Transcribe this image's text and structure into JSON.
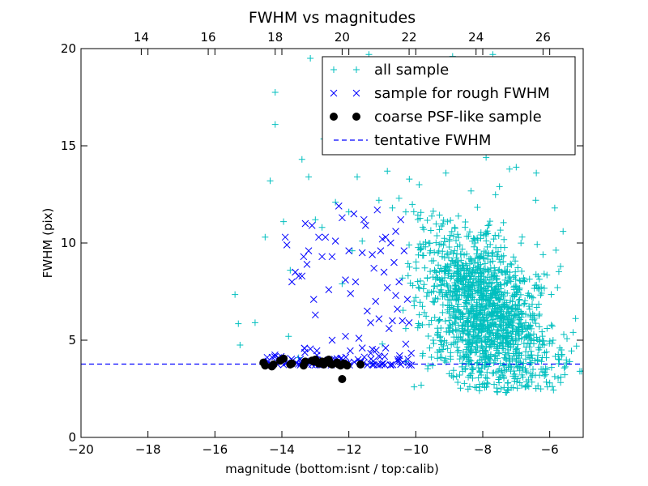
{
  "chart_data": {
    "type": "scatter",
    "title": "FWHM vs magnitudes",
    "xlabel": "magnitude (bottom:isnt / top:calib)",
    "ylabel": "FWHM (pix)",
    "xlim": [
      -20,
      -5
    ],
    "ylim": [
      0,
      20
    ],
    "xticks": [
      "−20",
      "−18",
      "−16",
      "−14",
      "−12",
      "−10",
      "−8",
      "−6"
    ],
    "yticks": [
      "0",
      "5",
      "10",
      "15",
      "20"
    ],
    "top_axis": {
      "offset_to_calib": 32.2,
      "ticks": [
        "14",
        "16",
        "18",
        "20",
        "22",
        "24",
        "26"
      ]
    },
    "legend_position": "upper-right",
    "grid": false,
    "series": [
      {
        "name": "all sample",
        "marker": "plus",
        "color": "#00bfbf",
        "cloud": {
          "cx": -7.9,
          "cy": 6.4,
          "sx": 0.95,
          "sy": 1.9,
          "n": 1500,
          "seed": 7
        },
        "points": [
          [
            -15.4,
            7.35
          ],
          [
            -15.3,
            5.85
          ],
          [
            -15.25,
            4.75
          ],
          [
            -14.8,
            5.9
          ],
          [
            -14.5,
            10.3
          ],
          [
            -14.35,
            13.2
          ],
          [
            -14.2,
            17.75
          ],
          [
            -14.2,
            16.1
          ],
          [
            -13.95,
            11.1
          ],
          [
            -13.8,
            5.2
          ],
          [
            -13.75,
            8.6
          ],
          [
            -13.4,
            14.3
          ],
          [
            -13.2,
            13.4
          ],
          [
            -13.15,
            19.5
          ],
          [
            -13.0,
            11.2
          ],
          [
            -12.8,
            10.8
          ],
          [
            -12.75,
            15.35
          ],
          [
            -12.65,
            14.9
          ],
          [
            -12.4,
            12.1
          ],
          [
            -12.2,
            7.9
          ],
          [
            -12.0,
            11.6
          ],
          [
            -11.9,
            9.6
          ],
          [
            -11.75,
            13.4
          ],
          [
            -11.6,
            10.1
          ],
          [
            -11.4,
            19.7
          ],
          [
            -11.3,
            14.9
          ],
          [
            -11.1,
            12.2
          ],
          [
            -11.0,
            4.8
          ],
          [
            -10.85,
            13.7
          ],
          [
            -10.7,
            11.8
          ],
          [
            -10.6,
            15.3
          ],
          [
            -10.5,
            12.3
          ],
          [
            -10.4,
            8.2
          ],
          [
            -10.3,
            5.6
          ],
          [
            -10.2,
            9.9
          ],
          [
            -10.05,
            2.6
          ],
          [
            -10.0,
            7.2
          ],
          [
            -9.9,
            13.0
          ],
          [
            -9.8,
            4.2
          ],
          [
            -9.6,
            5.8
          ],
          [
            -9.3,
            4.5
          ],
          [
            -9.1,
            13.6
          ],
          [
            -8.9,
            19.6
          ],
          [
            -8.6,
            15.2
          ],
          [
            -8.3,
            17.6
          ],
          [
            -8.1,
            2.4
          ],
          [
            -7.9,
            14.4
          ],
          [
            -7.7,
            19.7
          ],
          [
            -7.5,
            12.9
          ],
          [
            -7.2,
            13.8
          ],
          [
            -7.0,
            13.9
          ],
          [
            -6.8,
            3.1
          ],
          [
            -6.6,
            6.6
          ],
          [
            -6.4,
            13.6
          ],
          [
            -6.2,
            9.4
          ],
          [
            -6.0,
            2.8
          ],
          [
            -5.85,
            11.8
          ],
          [
            -5.7,
            4.6
          ],
          [
            -5.6,
            10.6
          ],
          [
            -5.4,
            3.9
          ],
          [
            -5.3,
            5.4
          ],
          [
            -5.2,
            4.7
          ],
          [
            -5.1,
            3.4
          ],
          [
            -5.05,
            3.4
          ],
          [
            -6.1,
            4.1
          ],
          [
            -5.9,
            5.0
          ],
          [
            -6.5,
            3.5
          ],
          [
            -7.4,
            3.2
          ],
          [
            -8.6,
            3.4
          ],
          [
            -9.5,
            3.7
          ],
          [
            -10.3,
            3.9
          ],
          [
            -11.3,
            3.8
          ],
          [
            -12.9,
            3.9
          ],
          [
            -13.5,
            4.1
          ]
        ]
      },
      {
        "name": "sample for rough FWHM",
        "marker": "x",
        "color": "#0000ff",
        "points": [
          [
            -13.9,
            10.3
          ],
          [
            -13.85,
            9.9
          ],
          [
            -13.7,
            8.0
          ],
          [
            -13.6,
            8.5
          ],
          [
            -13.5,
            8.3
          ],
          [
            -13.4,
            8.3
          ],
          [
            -13.35,
            9.3
          ],
          [
            -13.3,
            11.0
          ],
          [
            -13.25,
            8.9
          ],
          [
            -13.2,
            9.6
          ],
          [
            -13.1,
            10.9
          ],
          [
            -13.05,
            7.1
          ],
          [
            -13.0,
            6.3
          ],
          [
            -12.9,
            10.3
          ],
          [
            -12.8,
            9.3
          ],
          [
            -12.7,
            10.3
          ],
          [
            -12.6,
            7.6
          ],
          [
            -12.5,
            9.3
          ],
          [
            -12.4,
            10.1
          ],
          [
            -12.3,
            11.9
          ],
          [
            -12.2,
            11.3
          ],
          [
            -12.1,
            8.1
          ],
          [
            -12.0,
            9.6
          ],
          [
            -11.95,
            7.4
          ],
          [
            -11.85,
            11.5
          ],
          [
            -11.8,
            8.0
          ],
          [
            -11.7,
            5.1
          ],
          [
            -11.6,
            9.5
          ],
          [
            -11.55,
            11.2
          ],
          [
            -11.5,
            10.9
          ],
          [
            -11.45,
            6.5
          ],
          [
            -11.35,
            5.9
          ],
          [
            -11.3,
            9.4
          ],
          [
            -11.2,
            7.0
          ],
          [
            -11.15,
            11.7
          ],
          [
            -11.1,
            6.1
          ],
          [
            -11.05,
            9.6
          ],
          [
            -11.0,
            10.2
          ],
          [
            -10.95,
            8.5
          ],
          [
            -10.9,
            10.3
          ],
          [
            -10.85,
            7.7
          ],
          [
            -10.8,
            5.6
          ],
          [
            -10.75,
            10.0
          ],
          [
            -10.7,
            6.0
          ],
          [
            -10.65,
            9.0
          ],
          [
            -10.6,
            7.3
          ],
          [
            -10.55,
            6.6
          ],
          [
            -10.5,
            8.0
          ],
          [
            -10.45,
            11.2
          ],
          [
            -10.4,
            6.0
          ],
          [
            -10.35,
            9.6
          ],
          [
            -10.3,
            4.8
          ],
          [
            -10.25,
            7.1
          ],
          [
            -10.2,
            5.9
          ],
          [
            -12.5,
            5.0
          ],
          [
            -12.1,
            5.2
          ],
          [
            -11.6,
            4.6
          ],
          [
            -10.9,
            4.6
          ],
          [
            -11.25,
            8.7
          ],
          [
            -10.6,
            10.6
          ]
        ],
        "band": {
          "x0": -14.6,
          "x1": -10.05,
          "y0": 3.72,
          "y1": 4.6,
          "n": 90,
          "seed": 11
        }
      },
      {
        "name": "coarse PSF-like sample",
        "marker": "dot",
        "color": "#000000",
        "points": [
          [
            -14.55,
            3.85
          ],
          [
            -14.5,
            3.7
          ],
          [
            -14.3,
            3.65
          ],
          [
            -14.25,
            3.75
          ],
          [
            -14.05,
            3.95
          ],
          [
            -13.95,
            4.05
          ],
          [
            -13.75,
            3.75
          ],
          [
            -13.7,
            3.8
          ],
          [
            -13.35,
            3.7
          ],
          [
            -13.3,
            3.9
          ],
          [
            -13.1,
            3.95
          ],
          [
            -13.05,
            3.9
          ],
          [
            -13.0,
            4.0
          ],
          [
            -12.75,
            3.75
          ],
          [
            -12.7,
            3.85
          ],
          [
            -12.65,
            3.95
          ],
          [
            -12.6,
            4.0
          ],
          [
            -12.55,
            3.8
          ],
          [
            -12.5,
            3.75
          ],
          [
            -12.35,
            3.85
          ],
          [
            -12.3,
            3.75
          ],
          [
            -12.25,
            3.7
          ],
          [
            -12.2,
            3.0
          ],
          [
            -12.15,
            3.8
          ],
          [
            -12.1,
            3.75
          ],
          [
            -12.05,
            3.7
          ],
          [
            -12.9,
            3.8
          ],
          [
            -12.8,
            3.9
          ],
          [
            -11.65,
            3.75
          ]
        ]
      },
      {
        "name": "tentative FWHM",
        "marker": "dashed-line",
        "color": "#0000ff",
        "y": 3.77
      }
    ]
  }
}
